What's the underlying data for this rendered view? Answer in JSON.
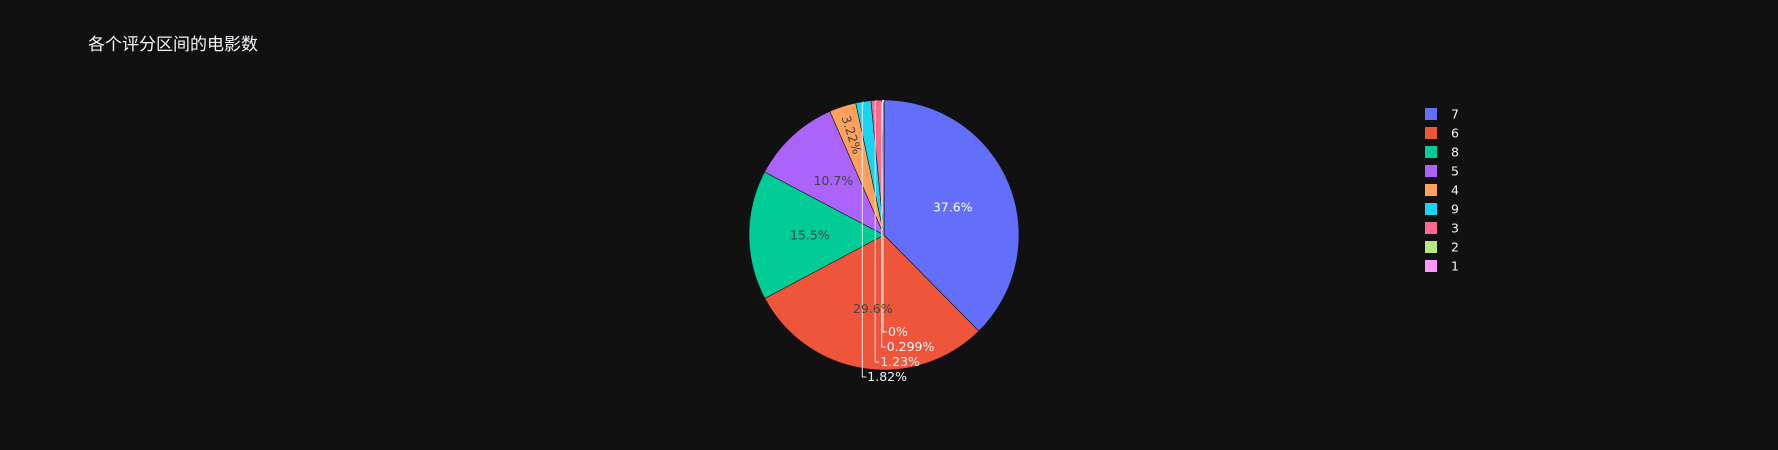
{
  "chart_data": {
    "type": "pie",
    "title": "各个评分区间的电影数",
    "legend_position": "top-right",
    "background": "#111111",
    "slices": [
      {
        "label": "7",
        "value": 37.6,
        "text": "37.6%",
        "color": "#636efa",
        "text_color": "#ffffff",
        "text_position": "inside"
      },
      {
        "label": "6",
        "value": 29.6,
        "text": "29.6%",
        "color": "#ef553b",
        "text_color": "#444444",
        "text_position": "inside"
      },
      {
        "label": "8",
        "value": 15.5,
        "text": "15.5%",
        "color": "#00cc96",
        "text_color": "#444444",
        "text_position": "inside"
      },
      {
        "label": "5",
        "value": 10.7,
        "text": "10.7%",
        "color": "#ab63fa",
        "text_color": "#444444",
        "text_position": "inside"
      },
      {
        "label": "4",
        "value": 3.22,
        "text": "3.22%",
        "color": "#ffa15a",
        "text_color": "#444444",
        "text_position": "inside"
      },
      {
        "label": "9",
        "value": 1.82,
        "text": "1.82%",
        "color": "#19d3f3",
        "text_color": "#f2f5fa",
        "text_position": "outside"
      },
      {
        "label": "3",
        "value": 1.23,
        "text": "1.23%",
        "color": "#ff6692",
        "text_color": "#f2f5fa",
        "text_position": "outside"
      },
      {
        "label": "2",
        "value": 0.299,
        "text": "0.299%",
        "color": "#b6e880",
        "text_color": "#f2f5fa",
        "text_position": "outside"
      },
      {
        "label": "1",
        "value": 0.005,
        "text": "0%",
        "color": "#ff97ff",
        "text_color": "#f2f5fa",
        "text_position": "outside"
      }
    ]
  }
}
